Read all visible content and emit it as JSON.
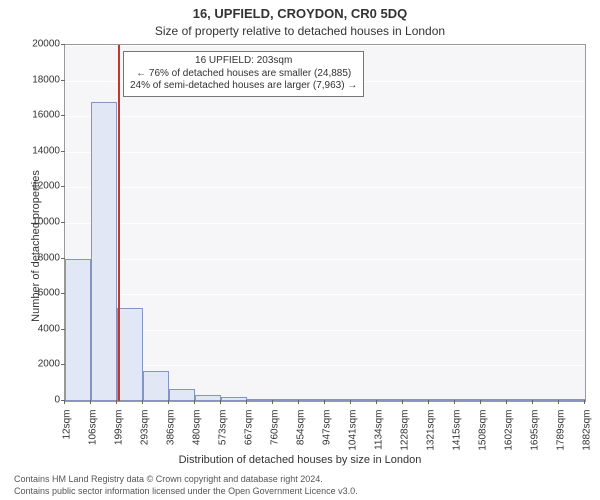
{
  "chart": {
    "type": "histogram",
    "title": "16, UPFIELD, CROYDON, CR0 5DQ",
    "subtitle": "Size of property relative to detached houses in London",
    "ylabel": "Number of detached properties",
    "xlabel": "Distribution of detached houses by size in London",
    "background_color": "#ffffff",
    "plot_bg_color": "#f6f6f8",
    "grid_color": "#ffffff",
    "bar_fill": "#e1e7f5",
    "bar_border": "#8494c4",
    "marker_color": "#c0392b",
    "title_fontsize": 13,
    "subtitle_fontsize": 12,
    "axis_label_fontsize": 11,
    "tick_fontsize": 10,
    "ylim": [
      0,
      20000
    ],
    "ytick_step": 2000,
    "xticks": [
      "12sqm",
      "106sqm",
      "199sqm",
      "293sqm",
      "386sqm",
      "480sqm",
      "573sqm",
      "667sqm",
      "760sqm",
      "854sqm",
      "947sqm",
      "1041sqm",
      "1134sqm",
      "1228sqm",
      "1321sqm",
      "1415sqm",
      "1508sqm",
      "1602sqm",
      "1695sqm",
      "1789sqm",
      "1882sqm"
    ],
    "xtick_values": [
      12,
      106,
      199,
      293,
      386,
      480,
      573,
      667,
      760,
      854,
      947,
      1041,
      1134,
      1228,
      1321,
      1415,
      1508,
      1602,
      1695,
      1789,
      1882
    ],
    "bars": [
      {
        "x0": 12,
        "x1": 106,
        "y": 8000
      },
      {
        "x0": 106,
        "x1": 199,
        "y": 16800
      },
      {
        "x0": 199,
        "x1": 293,
        "y": 5200
      },
      {
        "x0": 293,
        "x1": 386,
        "y": 1700
      },
      {
        "x0": 386,
        "x1": 480,
        "y": 700
      },
      {
        "x0": 480,
        "x1": 573,
        "y": 350
      },
      {
        "x0": 573,
        "x1": 667,
        "y": 200
      },
      {
        "x0": 667,
        "x1": 760,
        "y": 110
      },
      {
        "x0": 760,
        "x1": 854,
        "y": 70
      },
      {
        "x0": 854,
        "x1": 947,
        "y": 40
      },
      {
        "x0": 947,
        "x1": 1041,
        "y": 25
      },
      {
        "x0": 1041,
        "x1": 1134,
        "y": 15
      },
      {
        "x0": 1134,
        "x1": 1228,
        "y": 10
      },
      {
        "x0": 1228,
        "x1": 1321,
        "y": 6
      },
      {
        "x0": 1321,
        "x1": 1415,
        "y": 4
      },
      {
        "x0": 1415,
        "x1": 1508,
        "y": 3
      },
      {
        "x0": 1508,
        "x1": 1602,
        "y": 2
      },
      {
        "x0": 1602,
        "x1": 1695,
        "y": 2
      },
      {
        "x0": 1695,
        "x1": 1789,
        "y": 1
      },
      {
        "x0": 1789,
        "x1": 1882,
        "y": 1
      }
    ],
    "marker_x": 203,
    "annotation": {
      "line1": "16 UPFIELD: 203sqm",
      "line2": "← 76% of detached houses are smaller (24,885)",
      "line3": "24% of semi-detached houses are larger (7,963) →"
    },
    "footer1": "Contains HM Land Registry data © Crown copyright and database right 2024.",
    "footer2": "Contains public sector information licensed under the Open Government Licence v3.0."
  }
}
